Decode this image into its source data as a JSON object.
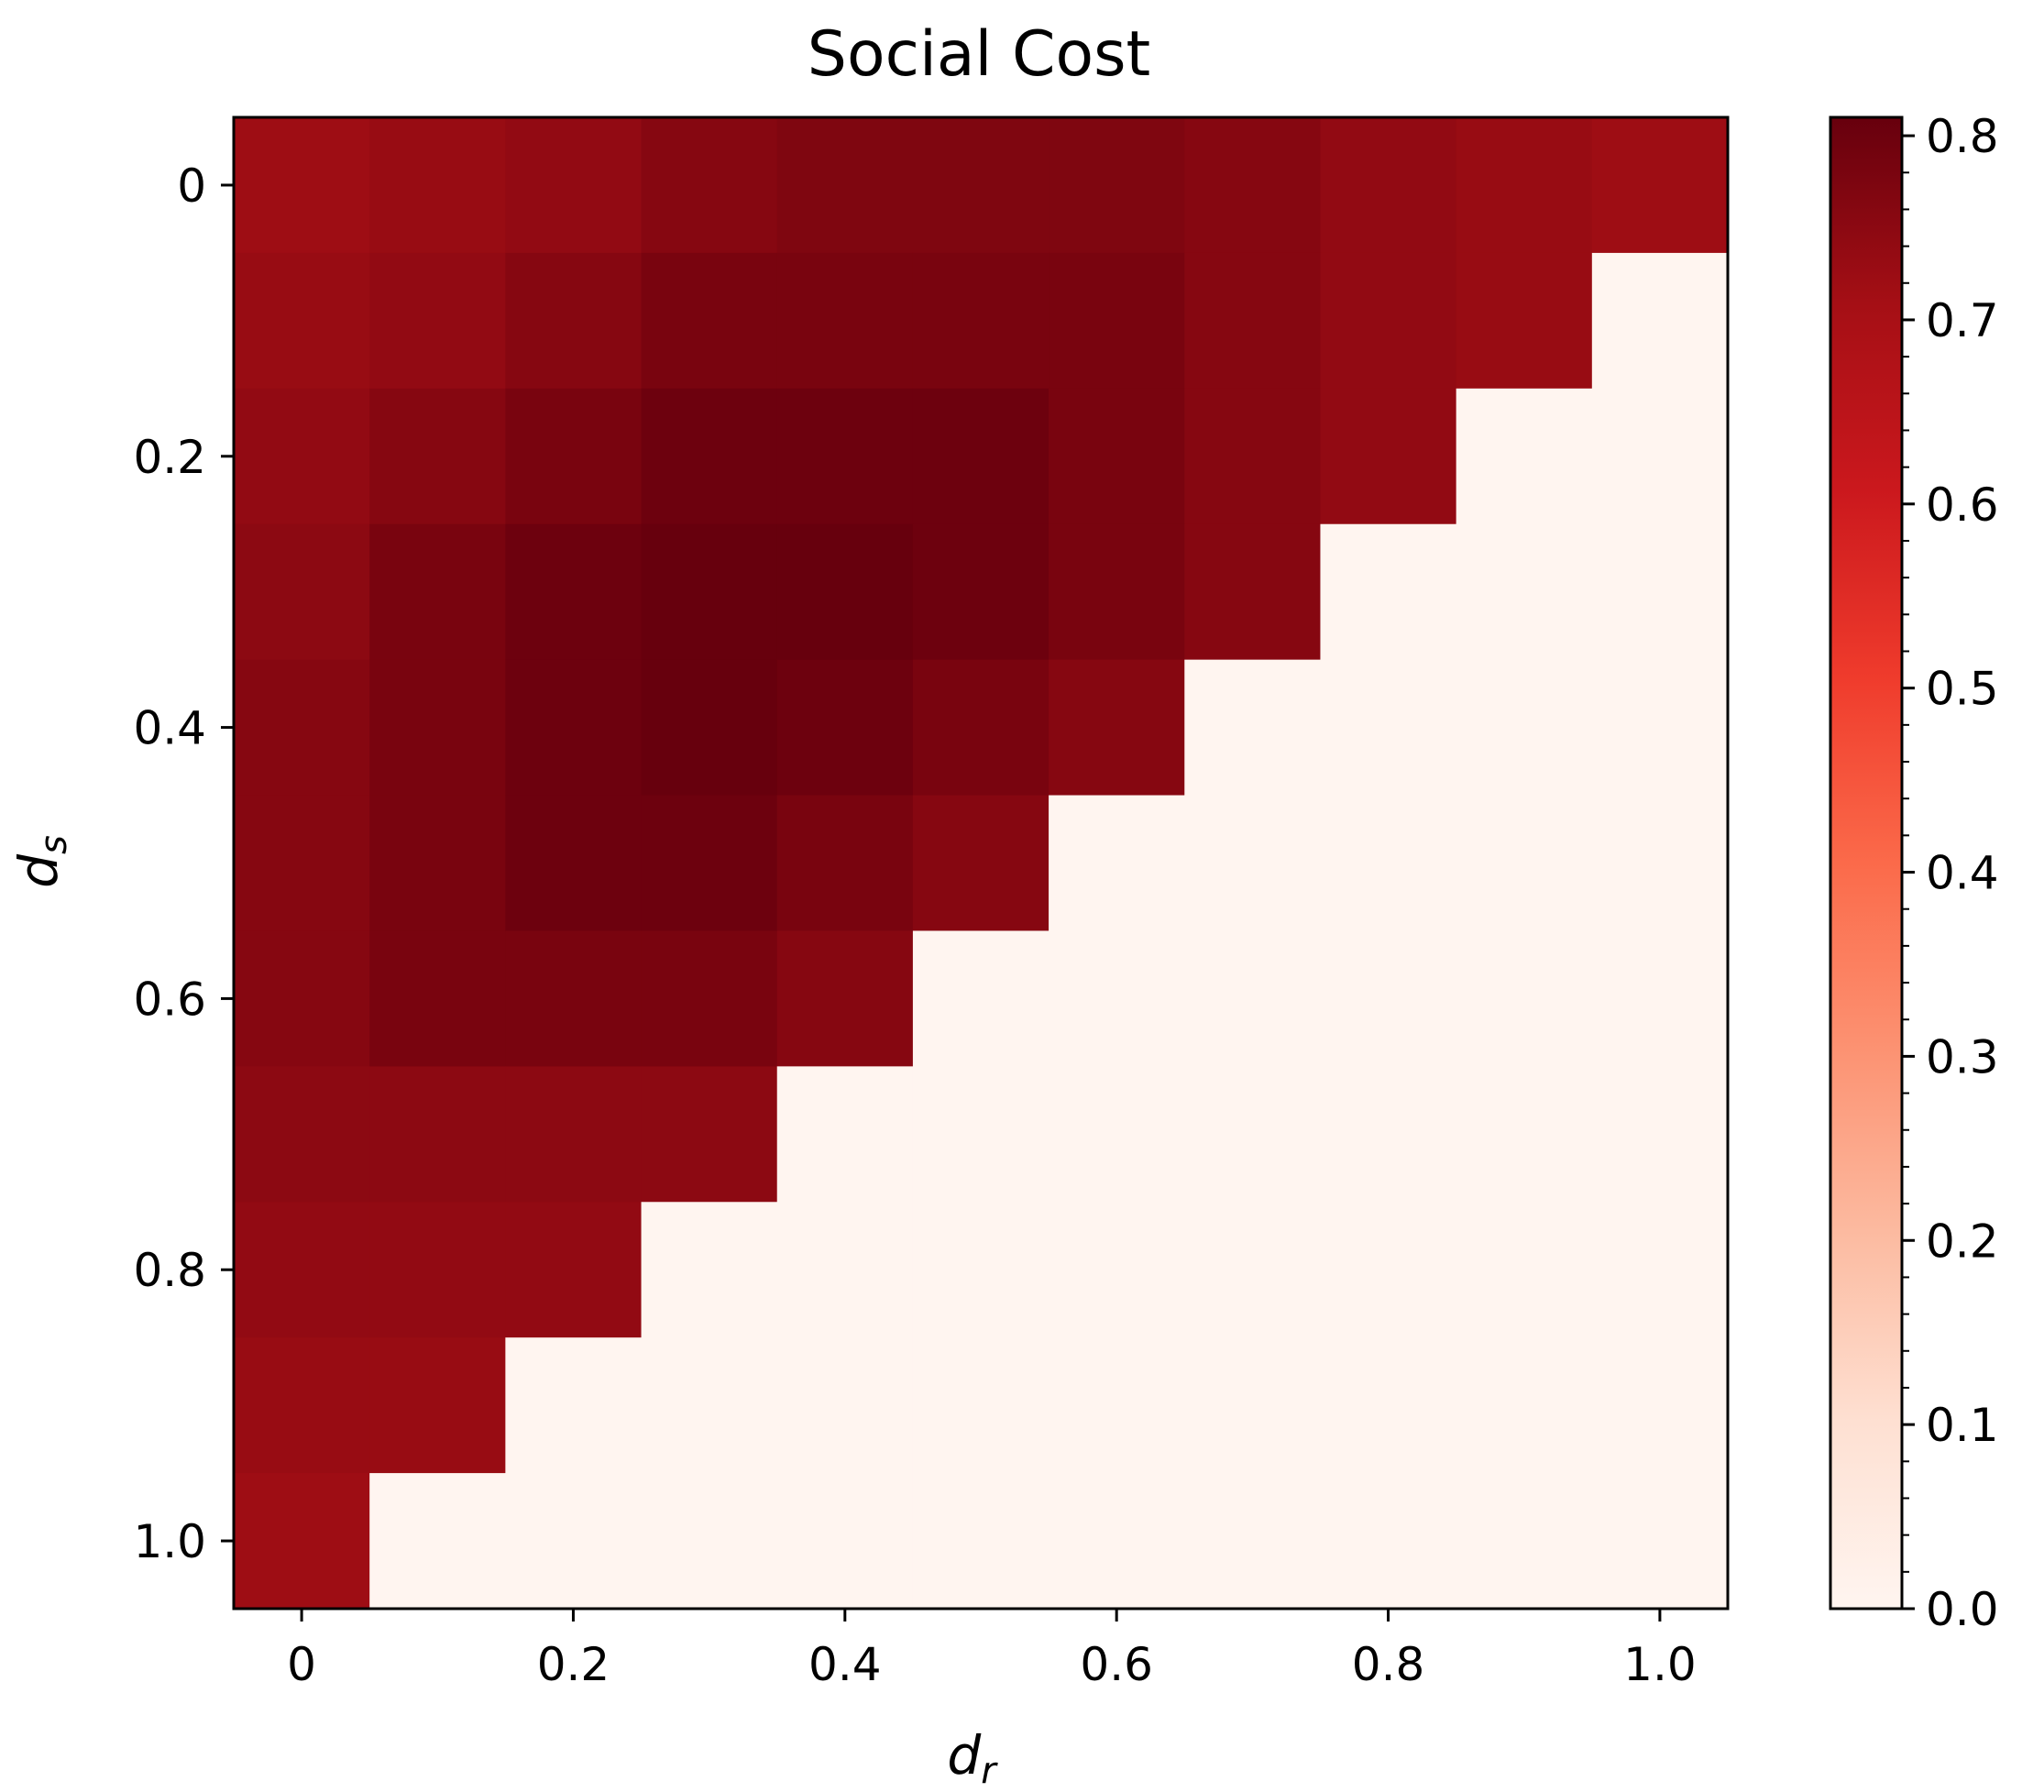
{
  "chart_data": {
    "type": "heatmap",
    "title": "Social Cost",
    "xlabel": "d",
    "xlabel_sub": "r",
    "ylabel": "d",
    "ylabel_sub": "s",
    "x": [
      0,
      0.1,
      0.2,
      0.3,
      0.4,
      0.5,
      0.6,
      0.7,
      0.8,
      0.9,
      1.0
    ],
    "y": [
      0,
      0.1,
      0.2,
      0.3,
      0.4,
      0.5,
      0.6,
      0.7,
      0.8,
      0.9,
      1.0
    ],
    "x_ticks": [
      "0",
      "0.2",
      "0.4",
      "0.6",
      "0.8",
      "1.0"
    ],
    "y_ticks": [
      "0",
      "0.2",
      "0.4",
      "0.6",
      "0.8",
      "1.0"
    ],
    "x_tick_values": [
      0,
      0.2,
      0.4,
      0.6,
      0.8,
      1.0
    ],
    "y_tick_values": [
      0,
      0.2,
      0.4,
      0.6,
      0.8,
      1.0
    ],
    "y_axis_inverted": true,
    "colormap": "Reds",
    "colorbar": {
      "min": 0.0,
      "max": 0.81,
      "ticks": [
        "0.0",
        "0.1",
        "0.2",
        "0.3",
        "0.4",
        "0.5",
        "0.6",
        "0.7",
        "0.8"
      ],
      "tick_values": [
        0.0,
        0.1,
        0.2,
        0.3,
        0.4,
        0.5,
        0.6,
        0.7,
        0.8
      ],
      "placement": "right"
    },
    "values": [
      [
        0.72,
        0.73,
        0.74,
        0.76,
        0.77,
        0.77,
        0.77,
        0.76,
        0.74,
        0.73,
        0.72
      ],
      [
        0.73,
        0.74,
        0.76,
        0.78,
        0.78,
        0.78,
        0.78,
        0.76,
        0.74,
        0.73,
        0.0
      ],
      [
        0.74,
        0.76,
        0.78,
        0.8,
        0.8,
        0.8,
        0.78,
        0.76,
        0.74,
        0.0,
        0.0
      ],
      [
        0.75,
        0.78,
        0.8,
        0.81,
        0.81,
        0.8,
        0.78,
        0.76,
        0.0,
        0.0,
        0.0
      ],
      [
        0.76,
        0.78,
        0.8,
        0.81,
        0.8,
        0.78,
        0.76,
        0.0,
        0.0,
        0.0,
        0.0
      ],
      [
        0.76,
        0.78,
        0.8,
        0.8,
        0.78,
        0.76,
        0.0,
        0.0,
        0.0,
        0.0,
        0.0
      ],
      [
        0.76,
        0.78,
        0.78,
        0.78,
        0.76,
        0.0,
        0.0,
        0.0,
        0.0,
        0.0,
        0.0
      ],
      [
        0.75,
        0.75,
        0.75,
        0.75,
        0.0,
        0.0,
        0.0,
        0.0,
        0.0,
        0.0,
        0.0
      ],
      [
        0.74,
        0.74,
        0.74,
        0.0,
        0.0,
        0.0,
        0.0,
        0.0,
        0.0,
        0.0,
        0.0
      ],
      [
        0.73,
        0.73,
        0.0,
        0.0,
        0.0,
        0.0,
        0.0,
        0.0,
        0.0,
        0.0,
        0.0
      ],
      [
        0.72,
        0.0,
        0.0,
        0.0,
        0.0,
        0.0,
        0.0,
        0.0,
        0.0,
        0.0,
        0.0
      ]
    ]
  }
}
